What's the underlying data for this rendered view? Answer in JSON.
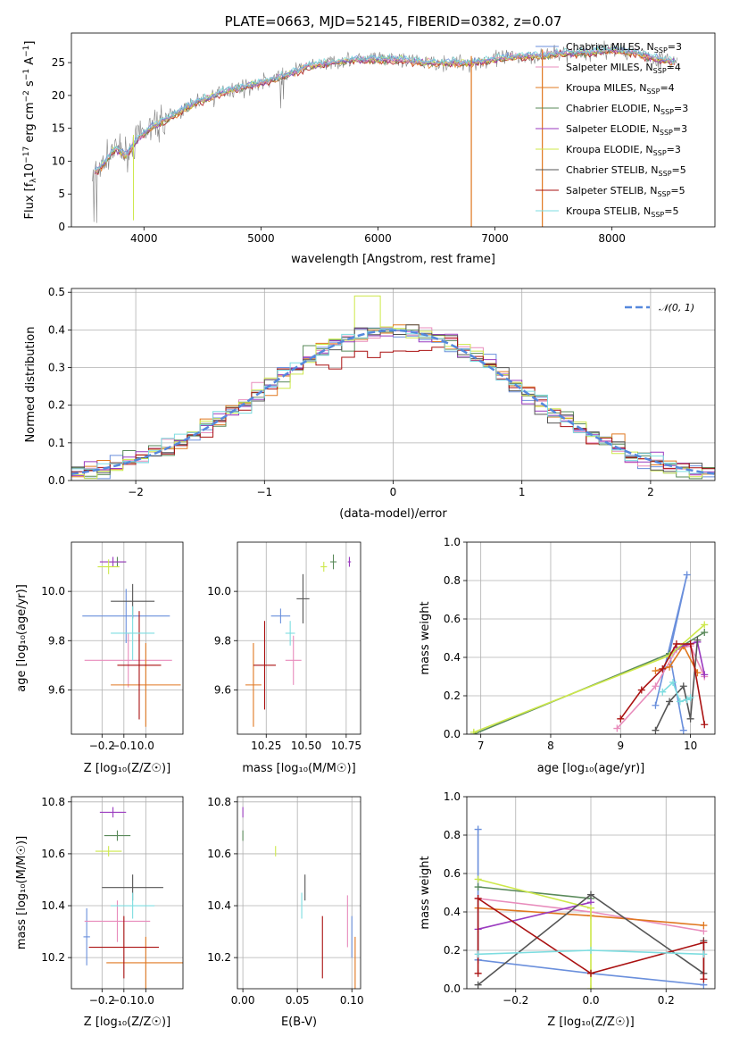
{
  "colors": {
    "Chabrier MILES": "#6a8fdc",
    "Salpeter MILES": "#e88cbc",
    "Kroupa MILES": "#e07820",
    "Chabrier ELODIE": "#5a8a5a",
    "Salpeter ELODIE": "#9a3abf",
    "Kroupa ELODIE": "#cde84a",
    "Chabrier STELIB": "#555555",
    "Salpeter STELIB": "#aa1111",
    "Kroupa STELIB": "#7ddde0",
    "spectrum": "#808080",
    "gaussian": "#5588dd",
    "grid": "#b0b0b0"
  },
  "chart_data": [
    {
      "id": "spectrum",
      "type": "line",
      "title": "PLATE=0663, MJD=52145, FIBERID=0382, z=0.07",
      "xlabel": "wavelength [Angstrom, rest frame]",
      "ylabel": "Flux [f$_\\lambda$10$^{-17}$ erg cm$^{-2}$ s$^{-1}$ A$^{-1}$]",
      "ylabel_parts": [
        "Flux [f",
        "λ",
        "10",
        "−17",
        " erg cm",
        "−2",
        " s",
        "−1",
        " A",
        "−1",
        "]"
      ],
      "xlim": [
        3380,
        8880
      ],
      "ylim": [
        0,
        29.5
      ],
      "xticks": [
        4000,
        5000,
        6000,
        7000,
        8000
      ],
      "yticks": [
        0,
        5,
        10,
        15,
        20,
        25
      ],
      "grid": false,
      "legend_position": "right",
      "continuum": [
        [
          3560,
          8
        ],
        [
          3650,
          9.5
        ],
        [
          3750,
          12
        ],
        [
          3850,
          11
        ],
        [
          3950,
          13.5
        ],
        [
          4050,
          15
        ],
        [
          4150,
          16
        ],
        [
          4300,
          17.5
        ],
        [
          4450,
          19
        ],
        [
          4600,
          20
        ],
        [
          4750,
          21
        ],
        [
          4900,
          21.5
        ],
        [
          5000,
          22
        ],
        [
          5100,
          22.5
        ],
        [
          5200,
          23
        ],
        [
          5400,
          24.5
        ],
        [
          5600,
          25
        ],
        [
          5800,
          25.5
        ],
        [
          6000,
          25.5
        ],
        [
          6200,
          25.5
        ],
        [
          6400,
          25
        ],
        [
          6600,
          25
        ],
        [
          6800,
          25
        ],
        [
          7000,
          25.5
        ],
        [
          7200,
          26
        ],
        [
          7400,
          26
        ],
        [
          7600,
          26.5
        ],
        [
          7800,
          26.5
        ],
        [
          8000,
          27
        ],
        [
          8200,
          26.5
        ],
        [
          8400,
          25.5
        ],
        [
          8560,
          25
        ]
      ],
      "legend": [
        {
          "name": "Chabrier MILES",
          "nssp": "3"
        },
        {
          "name": "Salpeter MILES",
          "nssp": "4"
        },
        {
          "name": "Kroupa MILES",
          "nssp": "4"
        },
        {
          "name": "Chabrier ELODIE",
          "nssp": "3"
        },
        {
          "name": "Salpeter ELODIE",
          "nssp": "3"
        },
        {
          "name": "Kroupa ELODIE",
          "nssp": "3"
        },
        {
          "name": "Chabrier STELIB",
          "nssp": "5"
        },
        {
          "name": "Salpeter STELIB",
          "nssp": "5"
        },
        {
          "name": "Kroupa STELIB",
          "nssp": "5"
        }
      ]
    },
    {
      "id": "residuals",
      "type": "histogram",
      "xlabel": "(data-model)/error",
      "ylabel": "Normed distribution",
      "xlim": [
        -2.5,
        2.5
      ],
      "ylim": [
        0,
        0.51
      ],
      "xticks": [
        -2,
        -1,
        0,
        1,
        2
      ],
      "yticks": [
        0.0,
        0.1,
        0.2,
        0.3,
        0.4,
        0.5
      ],
      "grid": true,
      "legend_position": "top-right",
      "legend": "𝒩(0, 1)",
      "bin_width": 0.1
    },
    {
      "id": "age_vs_Z",
      "type": "errorbar",
      "xlabel": "Z [log₁₀(Z/Z☉)]",
      "ylabel": "age  [log₁₀(age/yr)]",
      "xlim": [
        -0.34,
        0.17
      ],
      "ylim": [
        9.42,
        10.2
      ],
      "xticks": [
        -0.2,
        -0.1,
        0.0
      ],
      "yticks": [
        9.6,
        9.8,
        10.0
      ],
      "grid": true,
      "points": [
        {
          "model": "Chabrier MILES",
          "x": -0.09,
          "xerr": 0.2,
          "y": 9.9,
          "yerr": 0.11
        },
        {
          "model": "Salpeter MILES",
          "x": -0.08,
          "xerr": 0.2,
          "y": 9.72,
          "yerr": 0.11
        },
        {
          "model": "Kroupa MILES",
          "x": 0.0,
          "xerr": 0.16,
          "y": 9.62,
          "yerr": 0.17
        },
        {
          "model": "Chabrier ELODIE",
          "x": -0.13,
          "xerr": 0.04,
          "y": 10.12,
          "yerr": 0.02
        },
        {
          "model": "Salpeter ELODIE",
          "x": -0.15,
          "xerr": 0.06,
          "y": 10.12,
          "yerr": 0.02
        },
        {
          "model": "Kroupa ELODIE",
          "x": -0.17,
          "xerr": 0.05,
          "y": 10.1,
          "yerr": 0.03
        },
        {
          "model": "Chabrier STELIB",
          "x": -0.06,
          "xerr": 0.1,
          "y": 9.96,
          "yerr": 0.07
        },
        {
          "model": "Salpeter STELIB",
          "x": -0.03,
          "xerr": 0.1,
          "y": 9.7,
          "yerr": 0.22
        },
        {
          "model": "Kroupa STELIB",
          "x": -0.06,
          "xerr": 0.1,
          "y": 9.83,
          "yerr": 0.11
        }
      ]
    },
    {
      "id": "age_vs_mass",
      "type": "errorbar",
      "xlabel": "mass [log₁₀(M/M☉)]",
      "ylabel": "",
      "xlim": [
        10.07,
        10.84
      ],
      "ylim": [
        9.42,
        10.2
      ],
      "xticks": [
        10.25,
        10.5,
        10.75
      ],
      "xtick_labels": [
        "10.25",
        "10.50",
        "10.75"
      ],
      "yticks": [
        9.6,
        9.8,
        10.0
      ],
      "grid": true,
      "points": [
        {
          "model": "Chabrier MILES",
          "x": 10.34,
          "xerr": 0.06,
          "y": 9.9,
          "yerr": 0.03
        },
        {
          "model": "Salpeter MILES",
          "x": 10.42,
          "xerr": 0.05,
          "y": 9.72,
          "yerr": 0.1
        },
        {
          "model": "Kroupa MILES",
          "x": 10.17,
          "xerr": 0.05,
          "y": 9.62,
          "yerr": 0.17
        },
        {
          "model": "Chabrier ELODIE",
          "x": 10.67,
          "xerr": 0.02,
          "y": 10.12,
          "yerr": 0.03
        },
        {
          "model": "Salpeter ELODIE",
          "x": 10.77,
          "xerr": 0.01,
          "y": 10.12,
          "yerr": 0.02
        },
        {
          "model": "Kroupa ELODIE",
          "x": 10.61,
          "xerr": 0.02,
          "y": 10.1,
          "yerr": 0.02
        },
        {
          "model": "Chabrier STELIB",
          "x": 10.48,
          "xerr": 0.04,
          "y": 9.97,
          "yerr": 0.1
        },
        {
          "model": "Salpeter STELIB",
          "x": 10.24,
          "xerr": 0.07,
          "y": 9.7,
          "yerr": 0.18
        },
        {
          "model": "Kroupa STELIB",
          "x": 10.4,
          "xerr": 0.03,
          "y": 9.83,
          "yerr": 0.05
        }
      ]
    },
    {
      "id": "massweight_vs_age",
      "type": "line",
      "xlabel": "age  [log₁₀(age/yr)]",
      "ylabel": "mass weight",
      "xlim": [
        6.8,
        10.35
      ],
      "ylim": [
        0,
        1.0
      ],
      "xticks": [
        7,
        8,
        9,
        10
      ],
      "yticks": [
        0.0,
        0.2,
        0.4,
        0.6,
        0.8,
        1.0
      ],
      "grid": true,
      "series": [
        {
          "model": "Chabrier MILES",
          "x": [
            9.5,
            9.95,
            9.7,
            9.9
          ],
          "y": [
            0.15,
            0.83,
            0.42,
            0.02
          ]
        },
        {
          "model": "Salpeter MILES",
          "x": [
            8.95,
            9.5,
            9.8,
            10.0,
            10.2
          ],
          "y": [
            0.03,
            0.25,
            0.44,
            0.46,
            0.3
          ]
        },
        {
          "model": "Kroupa MILES",
          "x": [
            9.5,
            9.7,
            9.9,
            10.1
          ],
          "y": [
            0.33,
            0.35,
            0.46,
            0.32
          ]
        },
        {
          "model": "Chabrier ELODIE",
          "x": [
            6.9,
            9.7,
            10.2
          ],
          "y": [
            0.0,
            0.42,
            0.53
          ]
        },
        {
          "model": "Salpeter ELODIE",
          "x": [
            9.8,
            10.1,
            10.2
          ],
          "y": [
            0.45,
            0.48,
            0.31
          ]
        },
        {
          "model": "Kroupa ELODIE",
          "x": [
            6.9,
            9.7,
            10.2
          ],
          "y": [
            0.01,
            0.41,
            0.57
          ]
        },
        {
          "model": "Chabrier STELIB",
          "x": [
            9.5,
            9.7,
            9.9,
            10.0,
            10.1
          ],
          "y": [
            0.02,
            0.17,
            0.25,
            0.08,
            0.49
          ]
        },
        {
          "model": "Salpeter STELIB",
          "x": [
            9.0,
            9.3,
            9.6,
            9.8,
            10.0,
            10.2
          ],
          "y": [
            0.08,
            0.23,
            0.34,
            0.47,
            0.47,
            0.05
          ]
        },
        {
          "model": "Kroupa STELIB",
          "x": [
            9.6,
            9.75,
            9.85,
            9.95,
            10.0
          ],
          "y": [
            0.22,
            0.27,
            0.17,
            0.18,
            0.19
          ]
        }
      ]
    },
    {
      "id": "mass_vs_Z",
      "type": "errorbar",
      "xlabel": "Z [log₁₀(Z/Z☉)]",
      "ylabel": "mass [log₁₀(M/M☉)]",
      "xlim": [
        -0.34,
        0.17
      ],
      "ylim": [
        10.08,
        10.82
      ],
      "xticks": [
        -0.2,
        -0.1,
        0.0
      ],
      "yticks": [
        10.2,
        10.4,
        10.6,
        10.8
      ],
      "grid": true,
      "points": [
        {
          "model": "Chabrier MILES",
          "x": -0.27,
          "xerr": 0.015,
          "y": 10.28,
          "yerr": 0.11
        },
        {
          "model": "Salpeter MILES",
          "x": -0.13,
          "xerr": 0.15,
          "y": 10.34,
          "yerr": 0.08
        },
        {
          "model": "Kroupa MILES",
          "x": 0.0,
          "xerr": 0.18,
          "y": 10.18,
          "yerr": 0.1
        },
        {
          "model": "Chabrier ELODIE",
          "x": -0.13,
          "xerr": 0.06,
          "y": 10.67,
          "yerr": 0.02
        },
        {
          "model": "Salpeter ELODIE",
          "x": -0.15,
          "xerr": 0.06,
          "y": 10.76,
          "yerr": 0.02
        },
        {
          "model": "Kroupa ELODIE",
          "x": -0.17,
          "xerr": 0.06,
          "y": 10.61,
          "yerr": 0.02
        },
        {
          "model": "Chabrier STELIB",
          "x": -0.06,
          "xerr": 0.14,
          "y": 10.47,
          "yerr": 0.05
        },
        {
          "model": "Salpeter STELIB",
          "x": -0.1,
          "xerr": 0.16,
          "y": 10.24,
          "yerr": 0.12
        },
        {
          "model": "Kroupa STELIB",
          "x": -0.06,
          "xerr": 0.1,
          "y": 10.4,
          "yerr": 0.05
        }
      ]
    },
    {
      "id": "mass_vs_ebv",
      "type": "errorbar",
      "xlabel": "E(B-V)",
      "ylabel": "",
      "xlim": [
        -0.005,
        0.108
      ],
      "ylim": [
        10.08,
        10.82
      ],
      "xticks": [
        0.0,
        0.05,
        0.1
      ],
      "xtick_labels": [
        "0.00",
        "0.05",
        "0.10"
      ],
      "yticks": [
        10.2,
        10.4,
        10.6,
        10.8
      ],
      "grid": true,
      "points": [
        {
          "model": "Chabrier MILES",
          "x": 0.1,
          "xerr": 0.0,
          "y": 10.28,
          "yerr": 0.08
        },
        {
          "model": "Salpeter MILES",
          "x": 0.096,
          "xerr": 0.0,
          "y": 10.34,
          "yerr": 0.1
        },
        {
          "model": "Kroupa MILES",
          "x": 0.103,
          "xerr": 0.0,
          "y": 10.18,
          "yerr": 0.1
        },
        {
          "model": "Chabrier ELODIE",
          "x": 0.0,
          "xerr": 0.0,
          "y": 10.67,
          "yerr": 0.02
        },
        {
          "model": "Salpeter ELODIE",
          "x": 0.0,
          "xerr": 0.0,
          "y": 10.76,
          "yerr": 0.02
        },
        {
          "model": "Kroupa ELODIE",
          "x": 0.03,
          "xerr": 0.0,
          "y": 10.61,
          "yerr": 0.02
        },
        {
          "model": "Chabrier STELIB",
          "x": 0.057,
          "xerr": 0.0,
          "y": 10.47,
          "yerr": 0.05
        },
        {
          "model": "Salpeter STELIB",
          "x": 0.073,
          "xerr": 0.0,
          "y": 10.24,
          "yerr": 0.12
        },
        {
          "model": "Kroupa STELIB",
          "x": 0.054,
          "xerr": 0.0,
          "y": 10.4,
          "yerr": 0.05
        }
      ]
    },
    {
      "id": "massweight_vs_Z",
      "type": "line",
      "xlabel": "Z [log₁₀(Z/Z☉)]",
      "ylabel": "mass weight",
      "xlim": [
        -0.33,
        0.33
      ],
      "ylim": [
        0,
        1.0
      ],
      "xticks": [
        -0.2,
        0.0,
        0.2
      ],
      "yticks": [
        0.0,
        0.2,
        0.4,
        0.6,
        0.8,
        1.0
      ],
      "grid": true,
      "series": [
        {
          "model": "Chabrier MILES",
          "x": [
            -0.3,
            -0.3,
            -0.3,
            0.0,
            0.3
          ],
          "y": [
            0.15,
            0.83,
            0.15,
            0.08,
            0.02
          ]
        },
        {
          "model": "Salpeter MILES",
          "x": [
            -0.3,
            0.0,
            0.3
          ],
          "y": [
            0.47,
            0.4,
            0.3
          ]
        },
        {
          "model": "Kroupa MILES",
          "x": [
            -0.3,
            0.0,
            0.3
          ],
          "y": [
            0.42,
            0.38,
            0.33
          ]
        },
        {
          "model": "Chabrier ELODIE",
          "x": [
            -0.3,
            0.0
          ],
          "y": [
            0.53,
            0.47
          ]
        },
        {
          "model": "Salpeter ELODIE",
          "x": [
            -0.3,
            0.0
          ],
          "y": [
            0.31,
            0.45
          ]
        },
        {
          "model": "Kroupa ELODIE",
          "x": [
            -0.3,
            0.0,
            0.0
          ],
          "y": [
            0.57,
            0.42,
            0.0
          ]
        },
        {
          "model": "Chabrier STELIB",
          "x": [
            -0.3,
            0.0,
            0.3,
            0.3
          ],
          "y": [
            0.02,
            0.49,
            0.08,
            0.25
          ]
        },
        {
          "model": "Salpeter STELIB",
          "x": [
            -0.3,
            -0.3,
            0.0,
            0.3,
            0.3
          ],
          "y": [
            0.08,
            0.47,
            0.08,
            0.24,
            0.05
          ]
        },
        {
          "model": "Kroupa STELIB",
          "x": [
            -0.3,
            0.0,
            0.3
          ],
          "y": [
            0.18,
            0.2,
            0.18
          ]
        }
      ]
    }
  ]
}
